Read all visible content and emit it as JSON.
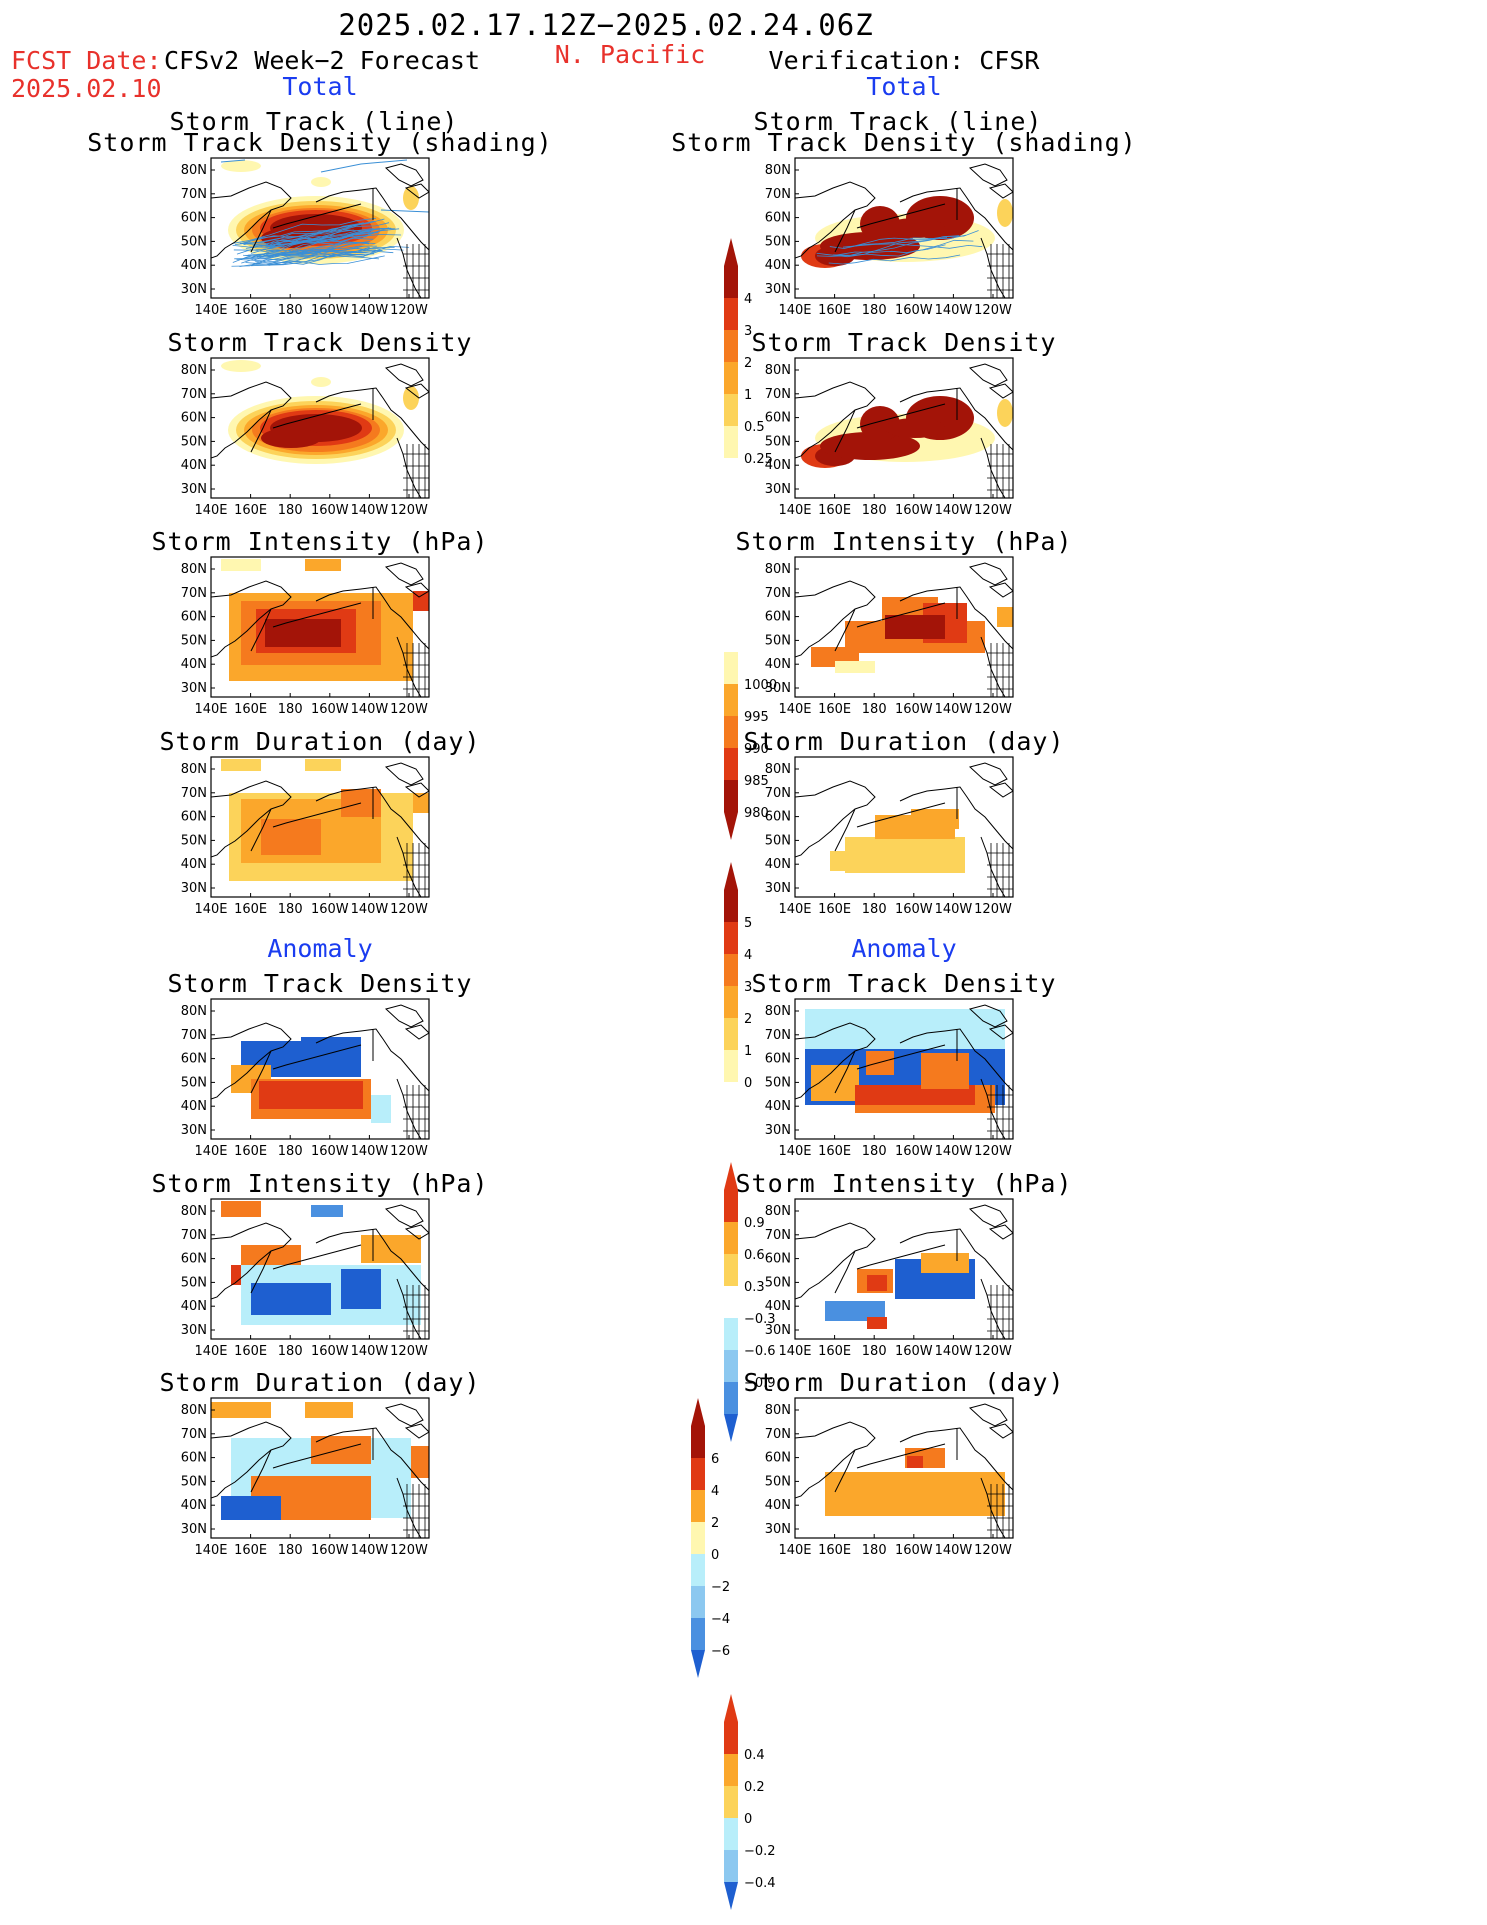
{
  "header": {
    "main_title": "2025.02.17.12Z−2025.02.24.06Z",
    "region": "N. Pacific",
    "fcst_label": "FCST Date:",
    "fcst_date": "2025.02.10",
    "left_model": "CFSv2 Week−2 Forecast",
    "right_model": "Verification: CFSR"
  },
  "sections": {
    "total": "Total",
    "anomaly": "Anomaly"
  },
  "panel_titles": {
    "track_line": "Storm Track (line)",
    "track_density_shading": "Storm Track Density (shading)",
    "track_density": "Storm Track Density",
    "intensity": "Storm Intensity (hPa)",
    "duration": "Storm Duration (day)"
  },
  "axes": {
    "y_ticks": [
      "80N",
      "70N",
      "60N",
      "50N",
      "40N",
      "30N"
    ],
    "x_ticks": [
      "140E",
      "160E",
      "180",
      "160W",
      "140W",
      "120W"
    ]
  },
  "colorbars": {
    "density": {
      "labels": [
        "4",
        "3",
        "2",
        "1",
        "0.5",
        "0.25"
      ]
    },
    "intensity": {
      "labels": [
        "1000",
        "995",
        "990",
        "985",
        "980"
      ]
    },
    "duration": {
      "labels": [
        "5",
        "4",
        "3",
        "2",
        "1",
        "0"
      ]
    },
    "density_anom": {
      "labels": [
        "0.9",
        "0.6",
        "0.3",
        "−0.3",
        "−0.6",
        "−0.9"
      ]
    },
    "intensity_anom": {
      "labels": [
        "6",
        "4",
        "2",
        "0",
        "−2",
        "−4",
        "−6"
      ]
    },
    "duration_anom": {
      "labels": [
        "0.4",
        "0.2",
        "0",
        "−0.2",
        "−0.4"
      ]
    }
  },
  "colors": {
    "title_red": "#e8312b",
    "section_blue": "#1a3cf0",
    "track_line": "#3a8fd6",
    "warm": [
      "#fff7b0",
      "#fcd35a",
      "#fba72b",
      "#f57a1e",
      "#e03a14",
      "#a31408"
    ],
    "cool": [
      "#b8eefa",
      "#8cc8f0",
      "#4a90e0",
      "#1e5fd0"
    ]
  }
}
